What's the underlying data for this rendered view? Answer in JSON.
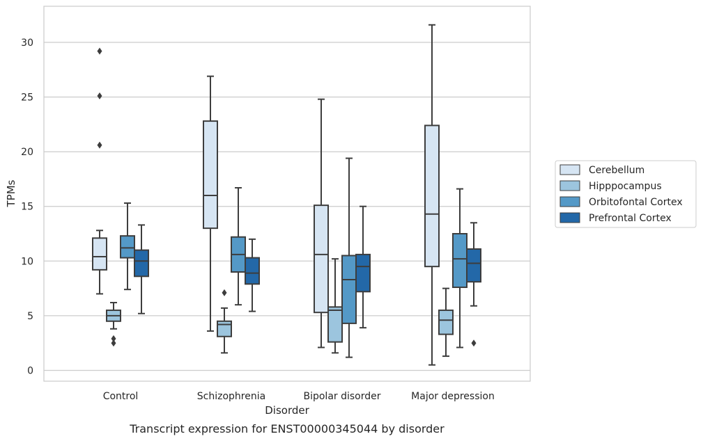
{
  "chart_data": {
    "type": "box",
    "title": "",
    "caption": "Transcript expression for ENST00000345044 by disorder",
    "xlabel": "Disorder",
    "ylabel": "TPMs",
    "ylim": [
      -1,
      33
    ],
    "yticks": [
      0,
      5,
      10,
      15,
      20,
      25,
      30
    ],
    "grid": "horizontal",
    "legend_position": "right",
    "categories": [
      "Control",
      "Schizophrenia",
      "Bipolar disorder",
      "Major depression"
    ],
    "series": [
      {
        "name": "Cerebellum",
        "color": "#d6e5f3",
        "boxes": [
          {
            "whislo": 7.0,
            "q1": 9.2,
            "med": 10.4,
            "q3": 12.1,
            "whishi": 12.8,
            "fliers": [
              20.6,
              25.1,
              29.2
            ]
          },
          {
            "whislo": 3.6,
            "q1": 13.0,
            "med": 16.0,
            "q3": 22.8,
            "whishi": 26.9,
            "fliers": []
          },
          {
            "whislo": 2.1,
            "q1": 5.3,
            "med": 10.6,
            "q3": 15.1,
            "whishi": 24.8,
            "fliers": []
          },
          {
            "whislo": 0.5,
            "q1": 9.5,
            "med": 14.3,
            "q3": 22.4,
            "whishi": 31.6,
            "fliers": []
          }
        ]
      },
      {
        "name": "Hipppocampus",
        "color": "#9cc5de",
        "boxes": [
          {
            "whislo": 3.8,
            "q1": 4.5,
            "med": 5.0,
            "q3": 5.5,
            "whishi": 6.2,
            "fliers": [
              2.5,
              2.9
            ]
          },
          {
            "whislo": 1.6,
            "q1": 3.1,
            "med": 4.2,
            "q3": 4.5,
            "whishi": 5.7,
            "fliers": [
              7.1
            ]
          },
          {
            "whislo": 1.6,
            "q1": 2.6,
            "med": 5.5,
            "q3": 5.8,
            "whishi": 10.2,
            "fliers": []
          },
          {
            "whislo": 1.3,
            "q1": 3.3,
            "med": 4.6,
            "q3": 5.5,
            "whishi": 7.5,
            "fliers": []
          }
        ]
      },
      {
        "name": "Orbitofontal Cortex",
        "color": "#5499c7",
        "boxes": [
          {
            "whislo": 7.4,
            "q1": 10.3,
            "med": 11.2,
            "q3": 12.3,
            "whishi": 15.3,
            "fliers": []
          },
          {
            "whislo": 6.0,
            "q1": 9.0,
            "med": 10.6,
            "q3": 12.2,
            "whishi": 16.7,
            "fliers": []
          },
          {
            "whislo": 1.2,
            "q1": 4.3,
            "med": 8.3,
            "q3": 10.5,
            "whishi": 19.4,
            "fliers": []
          },
          {
            "whislo": 2.1,
            "q1": 7.6,
            "med": 10.2,
            "q3": 12.5,
            "whishi": 16.6,
            "fliers": []
          }
        ]
      },
      {
        "name": "Prefrontal Cortex",
        "color": "#2368a8",
        "boxes": [
          {
            "whislo": 5.2,
            "q1": 8.6,
            "med": 10.0,
            "q3": 11.0,
            "whishi": 13.3,
            "fliers": []
          },
          {
            "whislo": 5.4,
            "q1": 7.9,
            "med": 8.9,
            "q3": 10.3,
            "whishi": 12.0,
            "fliers": []
          },
          {
            "whislo": 3.9,
            "q1": 7.2,
            "med": 9.5,
            "q3": 10.6,
            "whishi": 15.0,
            "fliers": []
          },
          {
            "whislo": 5.9,
            "q1": 8.1,
            "med": 9.8,
            "q3": 11.1,
            "whishi": 13.5,
            "fliers": [
              2.5
            ]
          }
        ]
      }
    ]
  }
}
